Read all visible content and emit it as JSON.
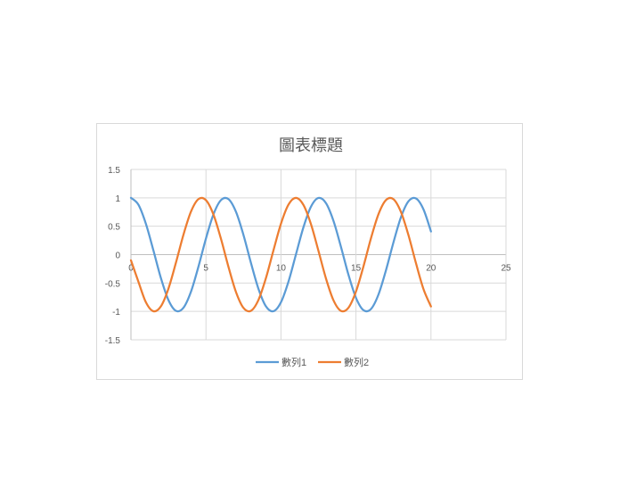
{
  "chart_data": {
    "type": "line",
    "title": "圖表標題",
    "xlabel": "",
    "ylabel": "",
    "xlim": [
      0,
      25
    ],
    "ylim": [
      -1.5,
      1.5
    ],
    "x_ticks": [
      0,
      5,
      10,
      15,
      20,
      25
    ],
    "y_ticks": [
      1.5,
      1,
      0.5,
      0,
      -0.5,
      -1,
      -1.5
    ],
    "x_tick_labels": [
      "0",
      "5",
      "10",
      "15",
      "20",
      "25"
    ],
    "y_tick_labels": [
      "1.5",
      "1",
      "0.5",
      "0",
      "-0.5",
      "-1",
      "-1.5"
    ],
    "grid": true,
    "legend_position": "bottom",
    "series": [
      {
        "name": "數列1",
        "color": "#5b9bd5",
        "x": [
          0,
          0.5,
          1,
          1.5,
          2,
          2.5,
          3,
          3.5,
          4,
          4.5,
          5,
          5.5,
          6,
          6.5,
          7,
          7.5,
          8,
          8.5,
          9,
          9.5,
          10,
          10.5,
          11,
          11.5,
          12,
          12.5,
          13,
          13.5,
          14,
          14.5,
          15,
          15.5,
          16,
          16.5,
          17,
          17.5,
          18,
          18.5,
          19,
          19.5,
          20
        ],
        "y": [
          1,
          0.878,
          0.54,
          0.071,
          -0.416,
          -0.801,
          -0.99,
          -0.936,
          -0.654,
          -0.211,
          0.284,
          0.709,
          0.96,
          0.977,
          0.754,
          0.347,
          -0.146,
          -0.602,
          -0.911,
          -0.997,
          -0.839,
          -0.476,
          0.004,
          0.483,
          0.844,
          0.998,
          0.907,
          0.595,
          0.137,
          -0.355,
          -0.76,
          -0.978,
          -0.958,
          -0.703,
          -0.275,
          0.216,
          0.66,
          0.939,
          0.989,
          0.797,
          0.408
        ]
      },
      {
        "name": "數列2",
        "color": "#ed7d31",
        "x": [
          0,
          0.5,
          1,
          1.5,
          2,
          2.5,
          3,
          3.5,
          4,
          4.5,
          5,
          5.5,
          6,
          6.5,
          7,
          7.5,
          8,
          8.5,
          9,
          9.5,
          10,
          10.5,
          11,
          11.5,
          12,
          12.5,
          13,
          13.5,
          14,
          14.5,
          15,
          15.5,
          16,
          16.5,
          17,
          17.5,
          18,
          18.5,
          19,
          19.5,
          20
        ],
        "y": [
          -0.1,
          -0.479,
          -0.841,
          -0.997,
          -0.909,
          -0.598,
          -0.141,
          0.351,
          0.757,
          0.978,
          0.959,
          0.706,
          0.279,
          -0.215,
          -0.657,
          -0.938,
          -0.989,
          -0.798,
          -0.412,
          0.075,
          0.544,
          0.88,
          1,
          0.875,
          0.537,
          0.066,
          -0.42,
          -0.804,
          -0.991,
          -0.935,
          -0.65,
          -0.207,
          0.288,
          0.712,
          0.961,
          0.976,
          0.751,
          0.342,
          -0.151,
          -0.606,
          -0.913
        ]
      }
    ]
  }
}
